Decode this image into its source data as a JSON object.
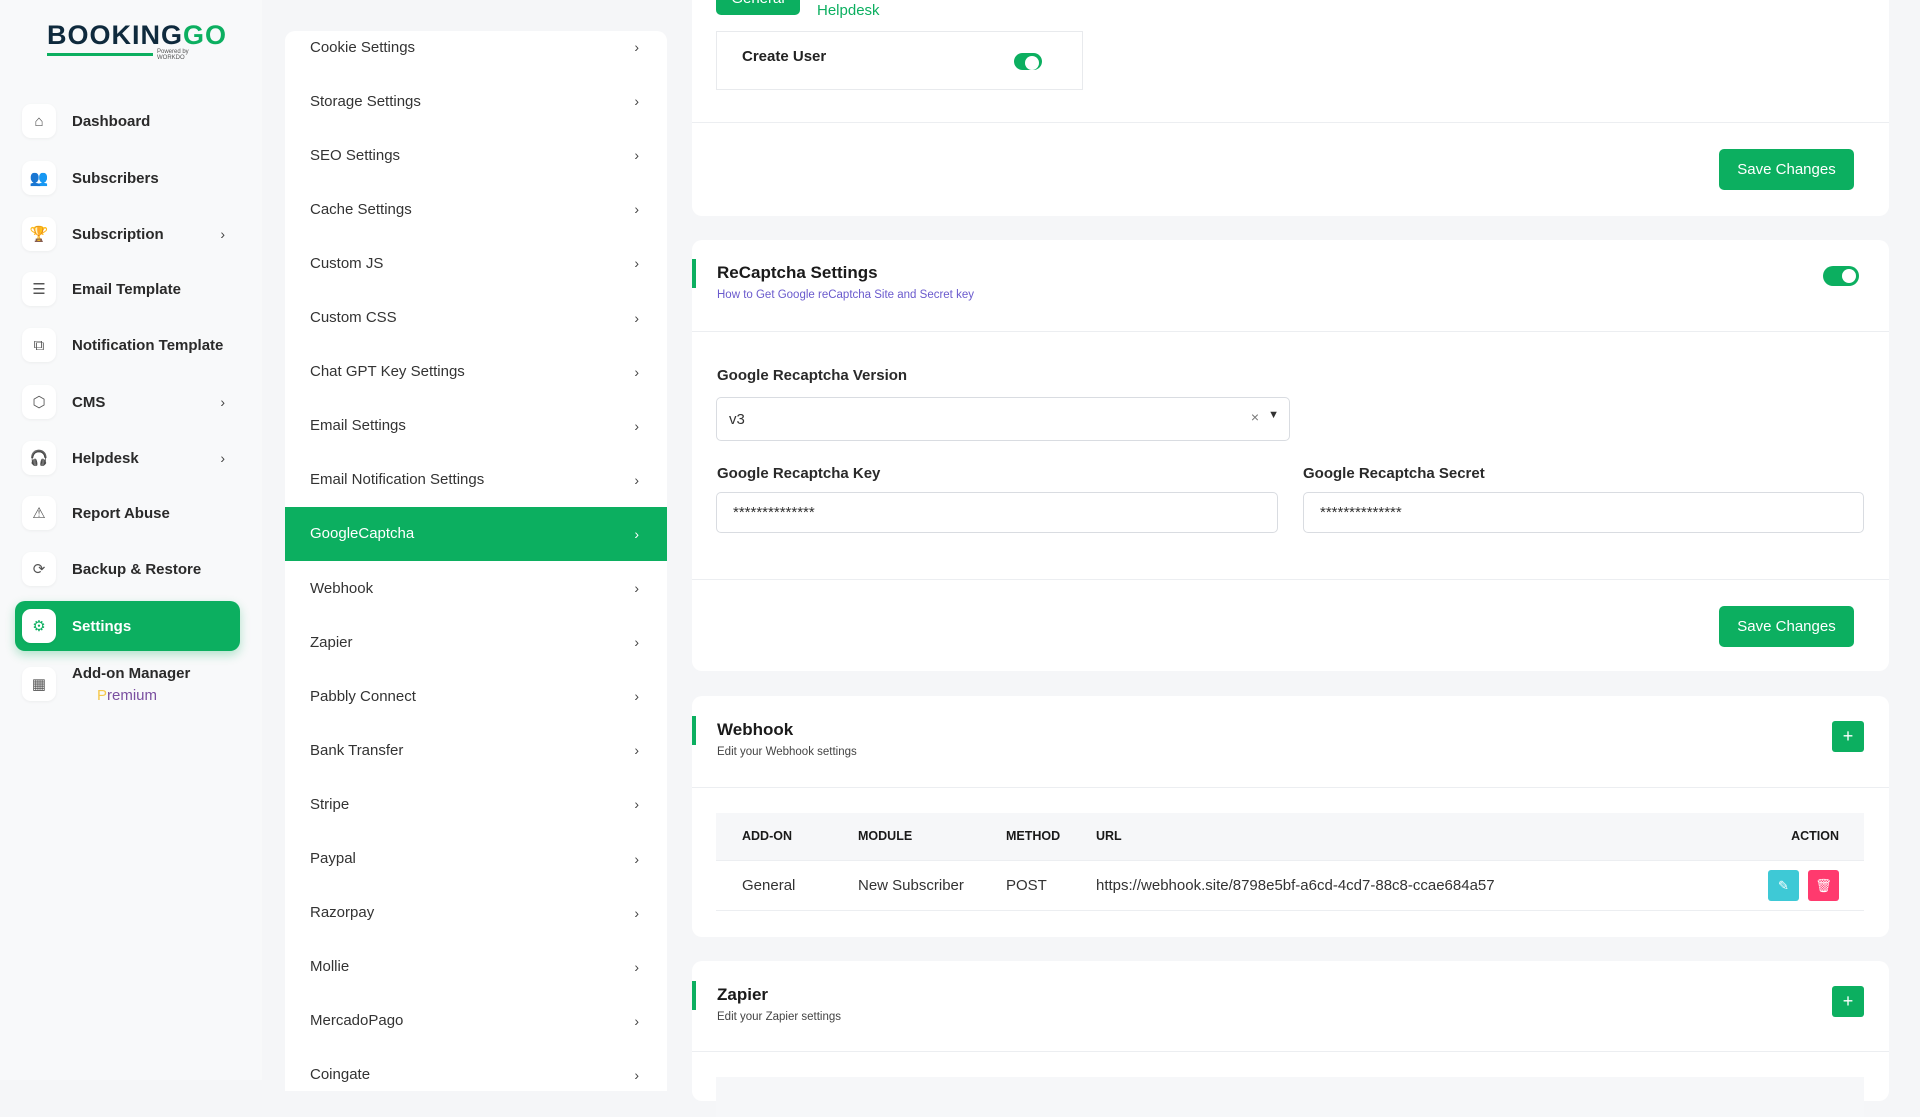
{
  "brand": {
    "logo_main": "BOOKING",
    "logo_accent": "GO",
    "logo_powered": "Powered by WORKDO"
  },
  "sidebar": {
    "items": [
      {
        "label": "Dashboard",
        "icon": "home-icon",
        "glyph": "⌂",
        "chevron": false
      },
      {
        "label": "Subscribers",
        "icon": "users-icon",
        "glyph": "👥",
        "chevron": false
      },
      {
        "label": "Subscription",
        "icon": "trophy-icon",
        "glyph": "🏆",
        "chevron": true
      },
      {
        "label": "Email Template",
        "icon": "template-icon",
        "glyph": "☰",
        "chevron": false
      },
      {
        "label": "Notification Template",
        "icon": "notification-icon",
        "glyph": "⧉",
        "chevron": false
      },
      {
        "label": "CMS",
        "icon": "package-icon",
        "glyph": "⬡",
        "chevron": true
      },
      {
        "label": "Helpdesk",
        "icon": "headphones-icon",
        "glyph": "🎧",
        "chevron": true
      },
      {
        "label": "Report Abuse",
        "icon": "alert-triangle-icon",
        "glyph": "⚠",
        "chevron": false
      },
      {
        "label": "Backup & Restore",
        "icon": "backup-icon",
        "glyph": "⟳",
        "chevron": false
      },
      {
        "label": "Settings",
        "icon": "gear-icon",
        "glyph": "⚙",
        "chevron": false,
        "active": true
      },
      {
        "label": "Add-on Manager",
        "icon": "apps-icon",
        "glyph": "▦",
        "chevron": false
      }
    ],
    "premium_first": "P",
    "premium_rest": "remium"
  },
  "settings_menu": {
    "items": [
      "Cookie Settings",
      "Storage Settings",
      "SEO Settings",
      "Cache Settings",
      "Custom JS",
      "Custom CSS",
      "Chat GPT Key Settings",
      "Email Settings",
      "Email Notification Settings",
      "GoogleCaptcha",
      "Webhook",
      "Zapier",
      "Pabbly Connect",
      "Bank Transfer",
      "Stripe",
      "Paypal",
      "Razorpay",
      "Mollie",
      "MercadoPago",
      "Coingate"
    ],
    "active": "GoogleCaptcha"
  },
  "top_card": {
    "tabs": [
      "General",
      "Helpdesk"
    ],
    "create_user_label": "Create User",
    "create_user_enabled": true,
    "save_label": "Save Changes"
  },
  "recaptcha": {
    "title": "ReCaptcha Settings",
    "help_link": "How to Get Google reCaptcha Site and Secret key",
    "enabled": true,
    "version_label": "Google Recaptcha Version",
    "version_value": "v3",
    "key_label": "Google Recaptcha Key",
    "key_value": "**************",
    "secret_label": "Google Recaptcha Secret",
    "secret_value": "**************",
    "save_label": "Save Changes"
  },
  "webhook": {
    "title": "Webhook",
    "subtitle": "Edit your Webhook settings",
    "add_label": "+",
    "columns": [
      "ADD-ON",
      "MODULE",
      "METHOD",
      "URL",
      "ACTION"
    ],
    "rows": [
      {
        "addon": "General",
        "module": "New Subscriber",
        "method": "POST",
        "url": "https://webhook.site/8798e5bf-a6cd-4cd7-88c8-ccae684a57"
      }
    ]
  },
  "zapier": {
    "title": "Zapier",
    "subtitle": "Edit your Zapier settings",
    "add_label": "+"
  },
  "colors": {
    "primary": "#0caf60",
    "edit": "#3ec9d6",
    "delete": "#ff3a6e",
    "link": "#6a5acd",
    "premium": "#7a4fa0"
  }
}
